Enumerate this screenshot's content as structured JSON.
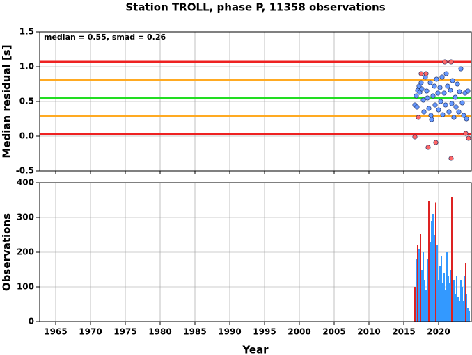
{
  "chart_data": [
    {
      "type": "scatter",
      "title": "Station TROLL, phase P, 11358 observations",
      "ylabel": "Median residual [s]",
      "annotation": "median = 0.55, smad = 0.26",
      "xlim": [
        1962.7,
        2024.7
      ],
      "xticks": [
        1965,
        1970,
        1975,
        1980,
        1985,
        1990,
        1995,
        2000,
        2005,
        2010,
        2015,
        2020
      ],
      "ylim": [
        -0.5,
        1.5
      ],
      "yticks": [
        -0.5,
        {
          "value": 0,
          "label": "0.0"
        },
        0.5,
        {
          "value": 1,
          "label": "1.0"
        },
        1.5
      ],
      "grid": true,
      "hlines": [
        {
          "value": 1.07,
          "color": "#ee2222"
        },
        {
          "value": 0.81,
          "color": "#ffaa22"
        },
        {
          "value": 0.55,
          "color": "#22dd22"
        },
        {
          "value": 0.29,
          "color": "#ffaa22"
        },
        {
          "value": 0.03,
          "color": "#ee2222"
        }
      ],
      "series": [
        {
          "color": "#6699ff",
          "x": [
            2016.6,
            2016.8,
            2016.9,
            2017.0,
            2017.2,
            2017.3,
            2017.5,
            2017.6,
            2017.8,
            2017.9,
            2018.1,
            2018.3,
            2018.4,
            2018.6,
            2018.8,
            2018.9,
            2019.0,
            2019.2,
            2019.4,
            2019.5,
            2019.7,
            2019.9,
            2020.0,
            2020.2,
            2020.3,
            2020.5,
            2020.6,
            2020.8,
            2021.0,
            2021.1,
            2021.3,
            2021.5,
            2021.7,
            2021.9,
            2022.0,
            2022.2,
            2022.4,
            2022.5,
            2022.7,
            2022.9,
            2023.0,
            2023.2,
            2023.4,
            2023.6,
            2023.8,
            2024.0,
            2024.2
          ],
          "y": [
            0.45,
            0.58,
            0.42,
            0.66,
            0.72,
            0.63,
            0.77,
            0.68,
            0.52,
            0.35,
            0.85,
            0.65,
            0.55,
            0.4,
            0.77,
            0.3,
            0.24,
            0.58,
            0.72,
            0.45,
            0.82,
            0.62,
            0.38,
            0.7,
            0.5,
            0.85,
            0.31,
            0.62,
            0.45,
            0.9,
            0.72,
            0.35,
            0.66,
            0.47,
            0.8,
            0.27,
            0.56,
            0.42,
            0.75,
            0.35,
            0.64,
            0.97,
            0.48,
            0.3,
            0.62,
            0.25,
            0.65
          ]
        },
        {
          "color": "#ff6666",
          "x": [
            2016.6,
            2017.1,
            2017.5,
            2018.2,
            2018.5,
            2019.6,
            2020.9,
            2021.8,
            2021.8,
            2023.9,
            2024.3
          ],
          "y": [
            -0.01,
            0.27,
            0.9,
            0.9,
            -0.16,
            -0.09,
            1.07,
            1.07,
            -0.32,
            0.04,
            -0.03
          ]
        }
      ]
    },
    {
      "type": "bar",
      "ylabel": "Observations",
      "xlabel": "Year",
      "xlim": [
        1962.7,
        2024.7
      ],
      "xticks": [
        1965,
        1970,
        1975,
        1980,
        1985,
        1990,
        1995,
        2000,
        2005,
        2010,
        2015,
        2020
      ],
      "ylim": [
        0,
        400
      ],
      "yticks": [
        0,
        100,
        200,
        300,
        400
      ],
      "grid": true,
      "series": [
        {
          "color": "#3399ff",
          "x": [
            2016.6,
            2016.8,
            2017.0,
            2017.2,
            2017.4,
            2017.6,
            2017.8,
            2018.0,
            2018.2,
            2018.4,
            2018.6,
            2018.8,
            2019.0,
            2019.2,
            2019.4,
            2019.6,
            2019.8,
            2020.0,
            2020.2,
            2020.4,
            2020.6,
            2020.8,
            2021.0,
            2021.2,
            2021.4,
            2021.6,
            2021.8,
            2022.0,
            2022.2,
            2022.4,
            2022.6,
            2022.8,
            2023.0,
            2023.2,
            2023.4,
            2023.6,
            2023.8,
            2024.0,
            2024.2,
            2024.4
          ],
          "values": [
            60,
            180,
            90,
            210,
            240,
            150,
            200,
            120,
            90,
            180,
            140,
            230,
            290,
            310,
            250,
            180,
            220,
            120,
            160,
            190,
            110,
            140,
            90,
            200,
            130,
            110,
            150,
            95,
            120,
            80,
            130,
            70,
            60,
            120,
            100,
            60,
            130,
            80,
            40,
            30
          ]
        },
        {
          "color": "#dd2222",
          "x": [
            2016.6,
            2017.0,
            2017.4,
            2018.6,
            2019.6,
            2021.9,
            2023.9
          ],
          "values": [
            100,
            220,
            252,
            348,
            343,
            358,
            170
          ]
        }
      ]
    }
  ]
}
